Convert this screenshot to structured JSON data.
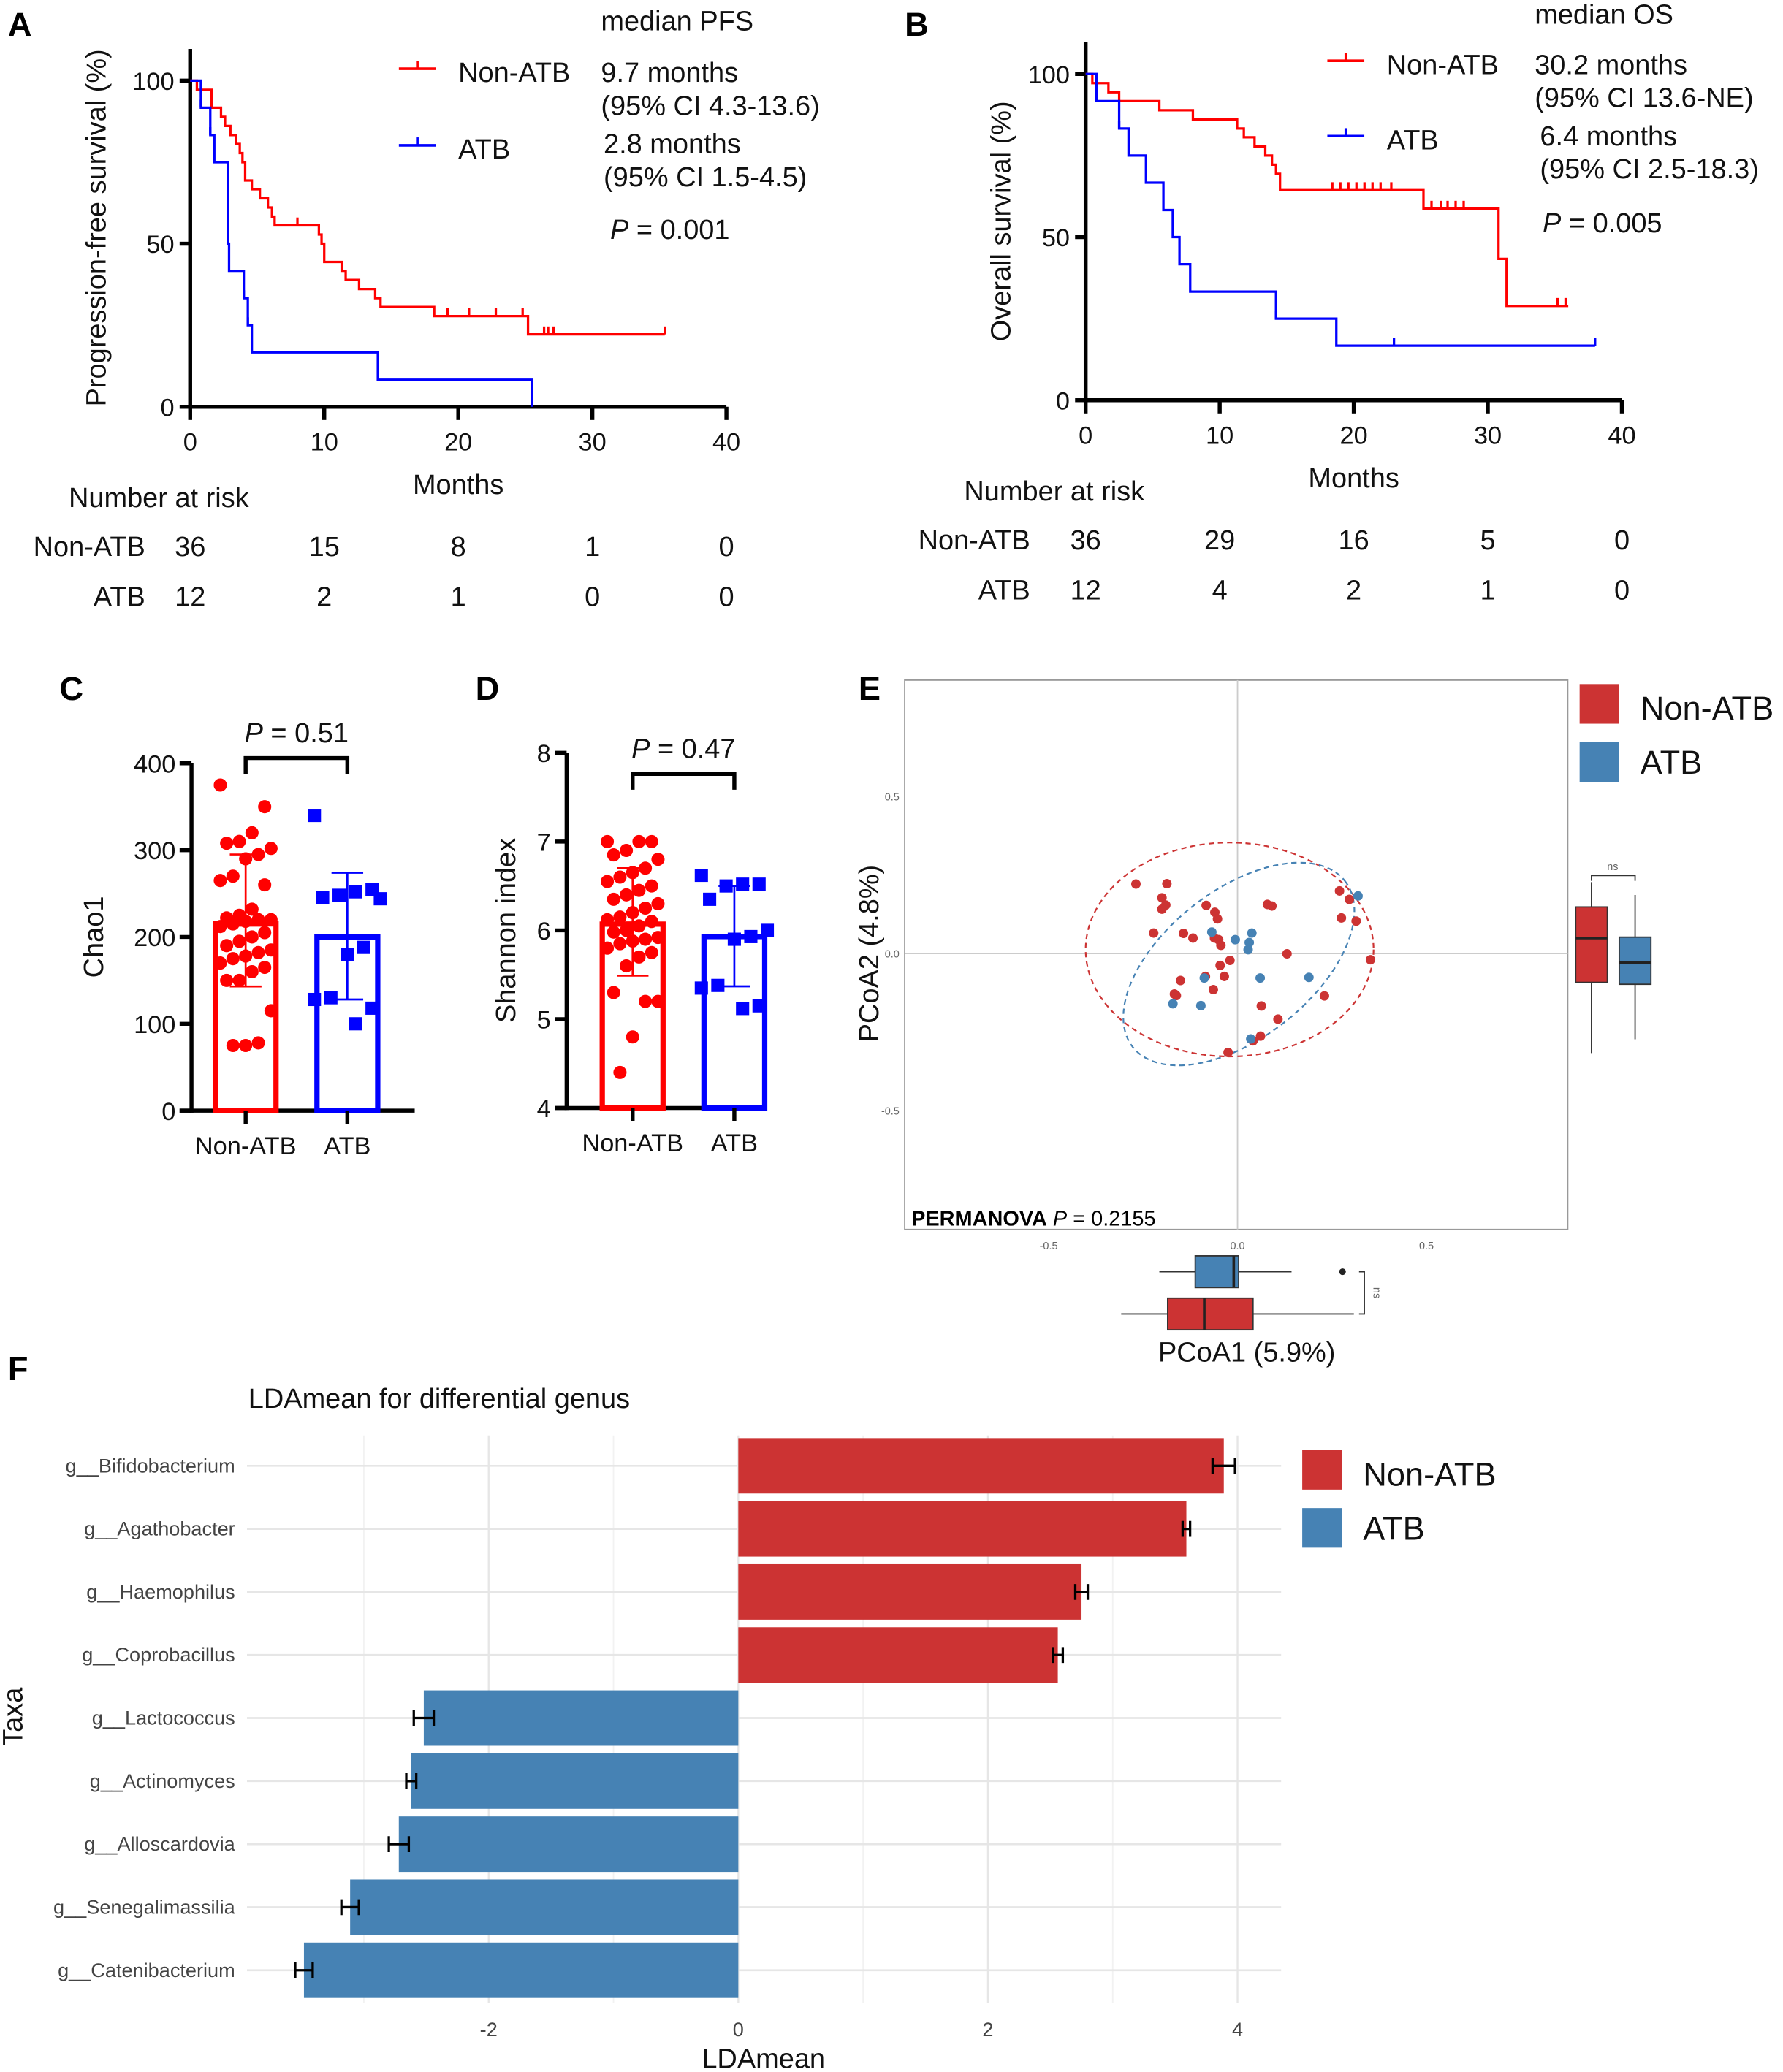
{
  "figure": {
    "panel_labels": [
      "A",
      "B",
      "C",
      "D",
      "E",
      "F"
    ]
  },
  "chart_data": [
    {
      "panel": "A",
      "type": "line",
      "xlabel": "Months",
      "ylabel": "Progression-free survival (%)",
      "xlim": [
        0,
        40
      ],
      "ylim": [
        0,
        100
      ],
      "xticks": [
        0,
        10,
        20,
        30,
        40
      ],
      "yticks": [
        0,
        50,
        100
      ],
      "legend_title": "median PFS",
      "p_label": "P",
      "p_value": "= 0.001",
      "series": [
        {
          "name": "Non-ATB",
          "color": "#ff0000",
          "median": "9.7 months",
          "ci": "(95% CI   4.3-13.6)",
          "steps": [
            [
              0,
              100
            ],
            [
              0.5,
              97.2
            ],
            [
              1.6,
              91.7
            ],
            [
              2.3,
              88.9
            ],
            [
              2.6,
              86.1
            ],
            [
              3.0,
              83.3
            ],
            [
              3.4,
              80.6
            ],
            [
              3.7,
              77.8
            ],
            [
              3.9,
              75.0
            ],
            [
              4.1,
              69.4
            ],
            [
              4.6,
              66.7
            ],
            [
              5.2,
              63.9
            ],
            [
              5.8,
              61.1
            ],
            [
              6.1,
              58.3
            ],
            [
              6.3,
              55.6
            ],
            [
              9.6,
              52.8
            ],
            [
              9.8,
              50.0
            ],
            [
              10.0,
              44.4
            ],
            [
              11.3,
              41.7
            ],
            [
              11.6,
              38.9
            ],
            [
              12.6,
              36.1
            ],
            [
              13.8,
              33.3
            ],
            [
              14.2,
              30.6
            ],
            [
              18.2,
              27.8
            ],
            [
              25.2,
              22.2
            ]
          ],
          "end": 35.4,
          "censored": [
            8.0,
            19.2,
            20.8,
            22.8,
            24.8,
            26.4,
            26.7,
            27.1,
            35.4
          ]
        },
        {
          "name": "ATB",
          "color": "#0000ff",
          "median": "2.8 months",
          "ci": "(95% CI   1.5-4.5)",
          "steps": [
            [
              0,
              100
            ],
            [
              0.8,
              91.7
            ],
            [
              1.5,
              83.3
            ],
            [
              1.8,
              75.0
            ],
            [
              2.8,
              50.0
            ],
            [
              2.9,
              41.7
            ],
            [
              4.0,
              33.3
            ],
            [
              4.3,
              25.0
            ],
            [
              4.6,
              16.7
            ],
            [
              14.0,
              8.3
            ],
            [
              25.5,
              0
            ]
          ],
          "end": 25.5,
          "censored": [
            0.8,
            1.5,
            2.8,
            4.0,
            4.3,
            25.5
          ]
        }
      ],
      "risk_table": {
        "title": "Number at risk",
        "times": [
          0,
          10,
          20,
          30,
          40
        ],
        "rows": [
          {
            "group": "Non-ATB",
            "counts": [
              36,
              15,
              8,
              1,
              0
            ]
          },
          {
            "group": "ATB",
            "counts": [
              12,
              2,
              1,
              0,
              0
            ]
          }
        ]
      }
    },
    {
      "panel": "B",
      "type": "line",
      "xlabel": "Months",
      "ylabel": "Overall survival (%)",
      "xlim": [
        0,
        40
      ],
      "ylim": [
        0,
        100
      ],
      "xticks": [
        0,
        10,
        20,
        30,
        40
      ],
      "yticks": [
        0,
        50,
        100
      ],
      "legend_title": "median OS",
      "p_label": "P",
      "p_value": "= 0.005",
      "series": [
        {
          "name": "Non-ATB",
          "color": "#ff0000",
          "median": "30.2 months",
          "ci": "(95% CI   13.6-NE)",
          "steps": [
            [
              0,
              100
            ],
            [
              0.5,
              97.2
            ],
            [
              1.7,
              94.4
            ],
            [
              2.5,
              91.7
            ],
            [
              5.5,
              88.9
            ],
            [
              8.0,
              86.1
            ],
            [
              11.3,
              83.3
            ],
            [
              11.8,
              80.6
            ],
            [
              12.6,
              77.8
            ],
            [
              13.4,
              75.0
            ],
            [
              13.9,
              72.2
            ],
            [
              14.2,
              69.4
            ],
            [
              14.5,
              64.4
            ],
            [
              25.2,
              58.7
            ],
            [
              30.8,
              43.3
            ],
            [
              31.4,
              28.9
            ]
          ],
          "end": 36.0,
          "censored": [
            18.4,
            19.0,
            19.6,
            20.2,
            20.8,
            21.4,
            22.0,
            22.8,
            25.8,
            26.5,
            27.0,
            27.6,
            28.2,
            35.2,
            35.8
          ]
        },
        {
          "name": "ATB",
          "color": "#0000ff",
          "median": "6.4 months",
          "ci": "(95% CI   2.5-18.3)",
          "steps": [
            [
              0,
              100
            ],
            [
              0.8,
              91.7
            ],
            [
              2.5,
              83.3
            ],
            [
              3.2,
              75.0
            ],
            [
              4.5,
              66.7
            ],
            [
              5.8,
              58.3
            ],
            [
              6.5,
              50.0
            ],
            [
              7.0,
              41.7
            ],
            [
              7.8,
              33.3
            ],
            [
              14.2,
              25.0
            ],
            [
              18.7,
              16.7
            ]
          ],
          "end": 38.0,
          "censored": [
            2.5,
            14.2,
            23.0,
            38.0
          ]
        }
      ],
      "risk_table": {
        "title": "Number at risk",
        "times": [
          0,
          10,
          20,
          30,
          40
        ],
        "rows": [
          {
            "group": "Non-ATB",
            "counts": [
              36,
              29,
              16,
              5,
              0
            ]
          },
          {
            "group": "ATB",
            "counts": [
              12,
              4,
              2,
              1,
              0
            ]
          }
        ]
      }
    },
    {
      "panel": "C",
      "type": "bar",
      "ylabel": "Chao1",
      "ylim": [
        0,
        400
      ],
      "yticks": [
        0,
        100,
        200,
        300,
        400
      ],
      "categories": [
        "Non-ATB",
        "ATB"
      ],
      "p_label": "P",
      "p_value": "= 0.51",
      "series": [
        {
          "category": "Non-ATB",
          "color": "#ff0000",
          "marker": "circle",
          "mean": 215,
          "sd_low": 143,
          "sd_high": 295,
          "points": [
            375,
            350,
            320,
            310,
            308,
            302,
            295,
            290,
            270,
            265,
            260,
            232,
            225,
            222,
            220,
            220,
            218,
            215,
            212,
            205,
            200,
            195,
            190,
            185,
            182,
            178,
            175,
            170,
            165,
            160,
            150,
            150,
            115,
            78,
            75,
            75
          ]
        },
        {
          "category": "ATB",
          "color": "#0000ff",
          "marker": "square",
          "mean": 200,
          "sd_low": 128,
          "sd_high": 274,
          "points": [
            340,
            255,
            252,
            248,
            245,
            244,
            188,
            180,
            130,
            128,
            118,
            100
          ]
        }
      ]
    },
    {
      "panel": "D",
      "type": "bar",
      "ylabel": "Shannon index",
      "ylim": [
        4,
        8
      ],
      "yticks": [
        4,
        5,
        6,
        7,
        8
      ],
      "categories": [
        "Non-ATB",
        "ATB"
      ],
      "p_label": "P",
      "p_value": "= 0.47",
      "series": [
        {
          "category": "Non-ATB",
          "color": "#ff0000",
          "marker": "circle",
          "mean": 6.07,
          "sd_low": 5.49,
          "sd_high": 6.7,
          "points": [
            7.0,
            7.0,
            7.0,
            6.9,
            6.85,
            6.8,
            6.7,
            6.65,
            6.6,
            6.55,
            6.5,
            6.45,
            6.4,
            6.35,
            6.3,
            6.25,
            6.2,
            6.15,
            6.12,
            6.1,
            6.05,
            6.0,
            5.98,
            5.92,
            5.9,
            5.88,
            5.85,
            5.8,
            5.75,
            5.7,
            5.6,
            5.3,
            5.2,
            5.2,
            4.8,
            4.4
          ]
        },
        {
          "category": "ATB",
          "color": "#0000ff",
          "marker": "square",
          "mean": 5.93,
          "sd_low": 5.37,
          "sd_high": 6.5,
          "points": [
            6.62,
            6.52,
            6.52,
            6.5,
            6.35,
            6.0,
            5.93,
            5.9,
            5.38,
            5.35,
            5.15,
            5.12
          ]
        }
      ]
    },
    {
      "panel": "E",
      "type": "scatter",
      "xlabel": "PCoA1 (5.9%)",
      "ylabel": "PCoA2 (4.8%)",
      "xticks": [
        -0.5,
        0.0,
        0.5
      ],
      "xtick_labels": [
        "-0.5",
        "0.0",
        "0.5"
      ],
      "yticks": [
        -0.5,
        0.0,
        0.5
      ],
      "ytick_labels": [
        "-0.5",
        "0.0",
        "0.5"
      ],
      "annotation_bold": "PERMANOVA",
      "p_label": "P",
      "p_value": "= 0.2155",
      "legend": [
        "Non-ATB",
        "ATB"
      ],
      "legend_placement": "right",
      "marginal_significance": "ns",
      "series": [
        {
          "name": "Non-ATB",
          "color": "#cc3333",
          "points": [
            [
              -0.269,
              0.221
            ],
            [
              -0.187,
              0.222
            ],
            [
              -0.2,
              0.177
            ],
            [
              -0.19,
              0.154
            ],
            [
              -0.2,
              0.141
            ],
            [
              -0.083,
              0.153
            ],
            [
              -0.06,
              0.131
            ],
            [
              -0.053,
              0.11
            ],
            [
              -0.222,
              0.065
            ],
            [
              -0.143,
              0.064
            ],
            [
              -0.118,
              0.049
            ],
            [
              -0.061,
              0.049
            ],
            [
              -0.05,
              0.044
            ],
            [
              -0.044,
              0.026
            ],
            [
              0.079,
              0.156
            ],
            [
              0.091,
              0.151
            ],
            [
              0.27,
              0.199
            ],
            [
              0.296,
              0.172
            ],
            [
              0.275,
              0.113
            ],
            [
              0.314,
              0.103
            ],
            [
              0.352,
              -0.02
            ],
            [
              0.131,
              -0.001
            ],
            [
              -0.02,
              -0.022
            ],
            [
              -0.046,
              -0.038
            ],
            [
              -0.085,
              -0.073
            ],
            [
              -0.035,
              -0.073
            ],
            [
              -0.151,
              -0.086
            ],
            [
              -0.064,
              -0.115
            ],
            [
              -0.167,
              -0.129
            ],
            [
              -0.162,
              -0.134
            ],
            [
              0.063,
              -0.167
            ],
            [
              0.107,
              -0.209
            ],
            [
              0.23,
              -0.135
            ],
            [
              0.061,
              -0.263
            ],
            [
              0.041,
              -0.278
            ],
            [
              -0.025,
              -0.315
            ]
          ],
          "box_pcoa1": {
            "min": -0.308,
            "q1": -0.185,
            "median": -0.088,
            "q3": 0.041,
            "max": 0.308
          },
          "box_pcoa2": {
            "min": -0.317,
            "q1": -0.092,
            "median": 0.049,
            "q3": 0.148,
            "max": 0.227
          }
        },
        {
          "name": "ATB",
          "color": "#4682b4",
          "points": [
            [
              -0.068,
              0.068
            ],
            [
              0.038,
              0.065
            ],
            [
              -0.006,
              0.044
            ],
            [
              0.031,
              0.035
            ],
            [
              0.028,
              0.012
            ],
            [
              -0.088,
              -0.078
            ],
            [
              0.06,
              -0.078
            ],
            [
              0.189,
              -0.076
            ],
            [
              -0.171,
              -0.16
            ],
            [
              -0.097,
              -0.166
            ],
            [
              0.035,
              -0.272
            ],
            [
              0.319,
              0.183
            ]
          ],
          "box_pcoa1": {
            "min": -0.207,
            "q1": -0.112,
            "median": -0.01,
            "q3": 0.003,
            "max": 0.143,
            "outliers": [
              0.278
            ]
          },
          "box_pcoa2": {
            "min": -0.273,
            "q1": -0.098,
            "median": -0.029,
            "q3": 0.052,
            "max": 0.186
          }
        }
      ]
    },
    {
      "panel": "F",
      "type": "bar",
      "orientation": "horizontal",
      "title": "LDAmean for differential genus",
      "xlabel": "LDAmean",
      "ylabel": "Taxa",
      "xticks": [
        -2,
        0,
        2,
        4
      ],
      "grid": true,
      "legend": [
        {
          "name": "Non-ATB",
          "color": "#cc3333"
        },
        {
          "name": "ATB",
          "color": "#4682b4"
        }
      ],
      "legend_placement": "right",
      "categories": [
        "g__Bifidobacterium",
        "g__Agathobacter",
        "g__Haemophilus",
        "g__Coprobacillus",
        "g__Lactococcus",
        "g__Actinomyces",
        "g__Alloscardovia",
        "g__Senegalimassilia",
        "g__Catenibacterium"
      ],
      "values": [
        3.89,
        3.59,
        2.75,
        2.56,
        -2.52,
        -2.62,
        -2.72,
        -3.11,
        -3.48
      ],
      "errors": [
        0.09,
        0.03,
        0.05,
        0.04,
        0.08,
        0.04,
        0.08,
        0.07,
        0.07
      ],
      "groups": [
        "Non-ATB",
        "Non-ATB",
        "Non-ATB",
        "Non-ATB",
        "ATB",
        "ATB",
        "ATB",
        "ATB",
        "ATB"
      ]
    }
  ]
}
